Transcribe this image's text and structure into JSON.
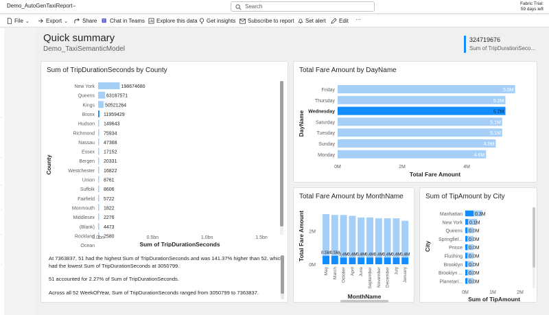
{
  "header": {
    "report_name": "Demo_AutoGenTaxiReport",
    "search_placeholder": "Search",
    "trial_line1": "Fabric Trial:",
    "trial_line2": "59 days left"
  },
  "toolbar": {
    "file": "File",
    "export": "Export",
    "share": "Share",
    "chat": "Chat in Teams",
    "explore": "Explore this data",
    "insights": "Get insights",
    "subscribe": "Subscribe to report",
    "alert": "Set alert",
    "edit": "Edit",
    "more": "···"
  },
  "page": {
    "title": "Quick summary",
    "model": "Demo_TaxiSemanticModel"
  },
  "kpi": {
    "value": "324719676",
    "label": "Sum of TripDurationSeco..."
  },
  "colors": {
    "bar": "#a6cff8",
    "highlight": "#118dff",
    "accent": "#118dff"
  },
  "chart_data": [
    {
      "type": "bar",
      "title": "Sum of TripDurationSeconds by County",
      "orientation": "horizontal",
      "categories": [
        "New York",
        "Queens",
        "Kings",
        "Bronx",
        "Hudson",
        "Richmond",
        "Nassau",
        "Essex",
        "Bergen",
        "Westchester",
        "Union",
        "Suffolk",
        "Fairfield",
        "Monmouth",
        "Middlesex",
        "(Blank)",
        "Rockland",
        "Ocean"
      ],
      "values": [
        198674680,
        63187571,
        50521264,
        11959429,
        149643,
        75934,
        47368,
        17152,
        20331,
        16822,
        8761,
        8606,
        5722,
        1822,
        2276,
        4473,
        2580,
        null
      ],
      "data_labels": [
        "198674680",
        "63187571",
        "50521264",
        "11959429",
        "149643",
        "75934",
        "47368",
        "17152",
        "20331",
        "16822",
        "8761",
        "8606",
        "5722",
        "1822",
        "2276",
        "4473",
        "2580",
        ""
      ],
      "xlabel": "Sum of TripDurationSeconds",
      "ylabel": "County",
      "ticks": [
        "0.0bn",
        "0.5bn",
        "1.0bn",
        "1.5bn"
      ],
      "xlim": [
        0,
        1500000000
      ]
    },
    {
      "type": "bar",
      "title": "Total Fare Amount by DayName",
      "orientation": "horizontal",
      "categories": [
        "Friday",
        "Thursday",
        "Wednesday",
        "Saturday",
        "Tuesday",
        "Sunday",
        "Monday"
      ],
      "values": [
        5500000,
        5200000,
        5200000,
        5100000,
        5100000,
        4900000,
        4600000
      ],
      "data_labels": [
        "5.5M",
        "5.2M",
        "5.2M",
        "5.1M",
        "5.1M",
        "4.9M",
        "4.6M"
      ],
      "highlighted": "Wednesday",
      "xlabel": "Total Fare Amount",
      "ylabel": "DayName",
      "ticks": [
        "0M",
        "2M",
        "4M"
      ],
      "xlim": [
        0,
        5700000
      ]
    },
    {
      "type": "bar",
      "title": "Total Fare Amount by MonthName",
      "orientation": "vertical",
      "stacked": true,
      "categories": [
        "May",
        "March",
        "October",
        "April",
        "June",
        "September",
        "November",
        "December",
        "July",
        "January"
      ],
      "values": [
        3000000,
        2950000,
        2950000,
        2900000,
        2800000,
        2800000,
        2750000,
        2750000,
        2750000,
        2600000
      ],
      "highlight_values": [
        500000,
        500000,
        400000,
        400000,
        400000,
        400000,
        400000,
        400000,
        400000,
        400000
      ],
      "data_labels": [
        "0.5M",
        "0.5M",
        "0.4M",
        "0.4M",
        "0.4M",
        "0.4M",
        "0.4M",
        "0.4M",
        "0.4M",
        "0.4M"
      ],
      "xlabel": "MonthName",
      "ylabel": "Total Fare Amount",
      "ticks": [
        "0M",
        "2M"
      ],
      "ylim": [
        0,
        3000000
      ]
    },
    {
      "type": "bar",
      "title": "Sum of TipAmount by City",
      "orientation": "horizontal",
      "categories": [
        "Manhattan",
        "New York",
        "Queens",
        "Springfiel...",
        "Prince",
        "Flushing",
        "Brooklyn",
        "Brooklyn ...",
        "Planetari..."
      ],
      "values": [
        300000,
        100000,
        0,
        0,
        0,
        0,
        0,
        0,
        0
      ],
      "data_labels": [
        "0.3M",
        "0.1M",
        "0.0M",
        "0.0M",
        "0.0M",
        "0.0M",
        "0.0M",
        "0.0M",
        "0.0M"
      ],
      "xlabel": "Sum of TipAmount",
      "ylabel": "City",
      "ticks": [
        "0M",
        "1M",
        "2M"
      ],
      "xlim": [
        0,
        2000000
      ]
    }
  ],
  "narrative": {
    "p1": "At 7363837, 51 had the highest Sum of TripDurationSeconds and was 141.37% higher than 52, which had the lowest Sum of TripDurationSeconds at 3050799.",
    "p2": "51 accounted for 2.27% of Sum of TripDurationSeconds.",
    "p3": "Across all 52 WeekOfYear, Sum of TripDurationSeconds ranged from 3050799 to 7363837."
  }
}
